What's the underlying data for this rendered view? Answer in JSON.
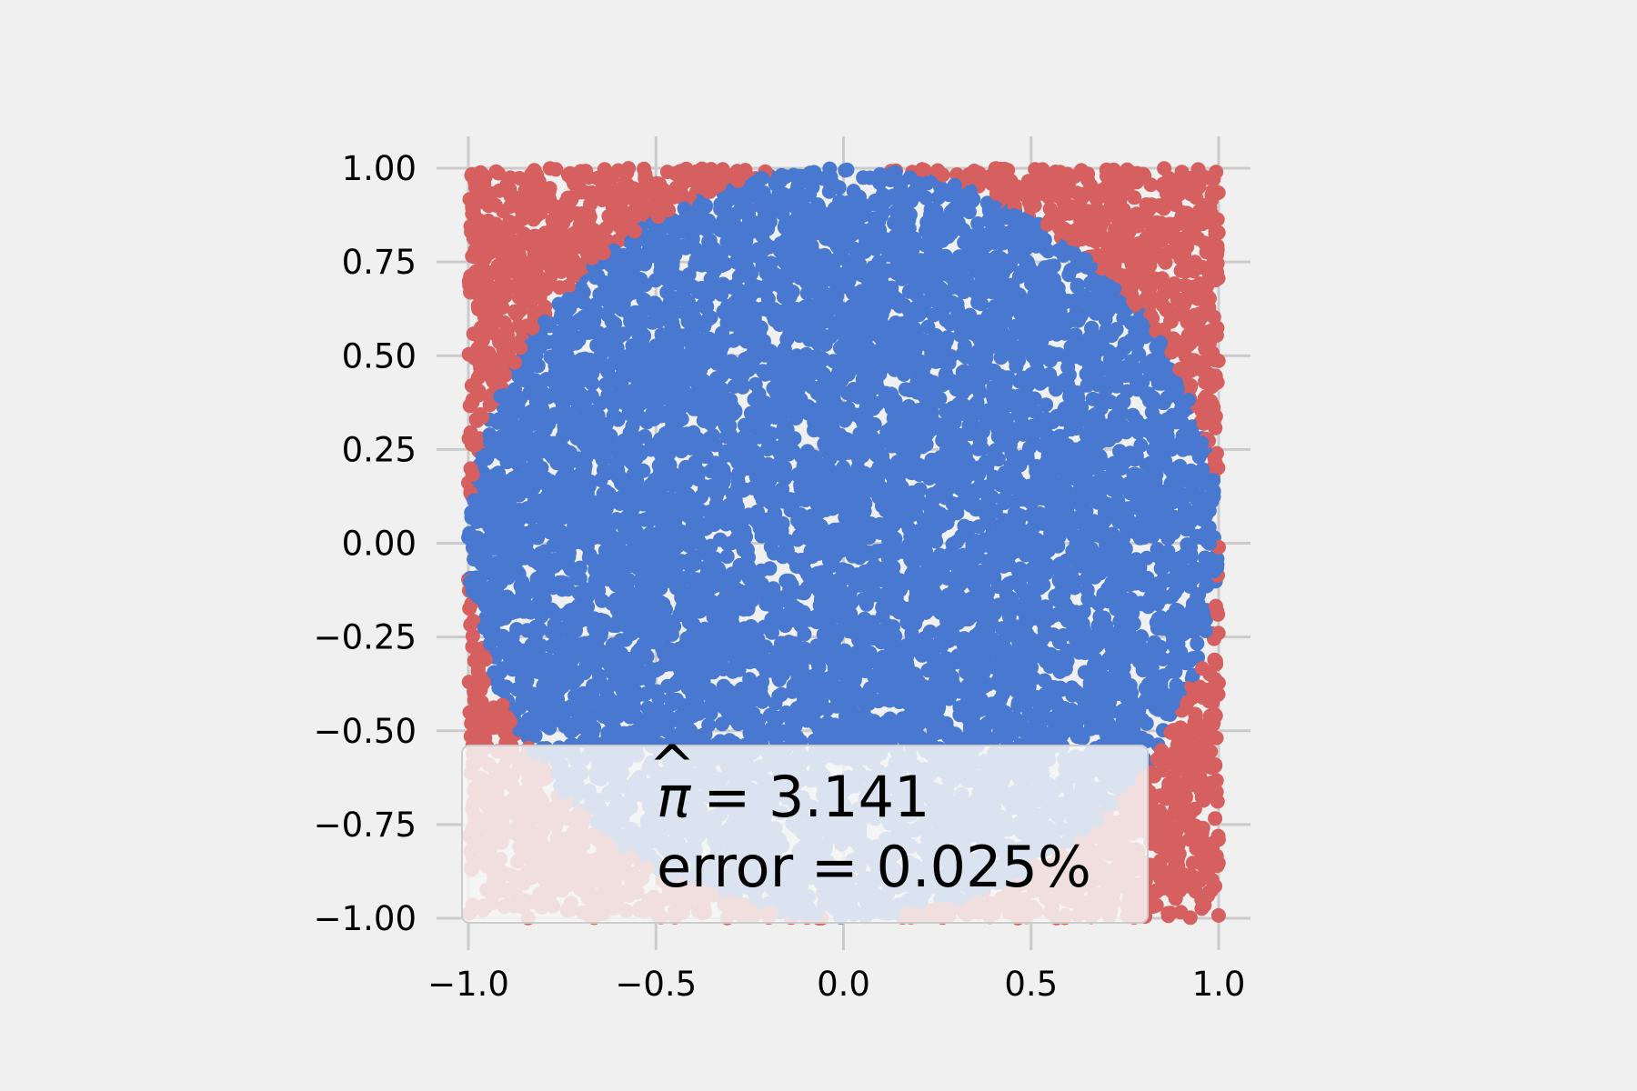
{
  "chart_data": {
    "type": "scatter",
    "title": "",
    "xlabel": "",
    "ylabel": "",
    "xlim": [
      -1.0,
      1.0
    ],
    "ylim": [
      -1.0,
      1.0
    ],
    "x_ticks": [
      -1.0,
      -0.5,
      0.0,
      0.5,
      1.0
    ],
    "x_tick_labels": [
      "−1.0",
      "−0.5",
      "0.0",
      "0.5",
      "1.0"
    ],
    "y_ticks": [
      1.0,
      0.75,
      0.5,
      0.25,
      0.0,
      -0.25,
      -0.5,
      -0.75,
      -1.0
    ],
    "y_tick_labels": [
      "1.00",
      "0.75",
      "0.50",
      "0.25",
      "0.00",
      "−0.25",
      "−0.50",
      "−0.75",
      "−1.00"
    ],
    "grid": true,
    "aspect": "equal",
    "series": [
      {
        "region": "inside unit circle",
        "color": "#4878cf"
      },
      {
        "region": "outside unit circle",
        "color": "#d65f5f"
      }
    ],
    "annotation": {
      "pi_hat_symbol": "π",
      "pi_hat_hat": "^",
      "pi_hat_value": "= 3.141",
      "error_line": "error = 0.025%",
      "placement": "lower-left"
    }
  }
}
